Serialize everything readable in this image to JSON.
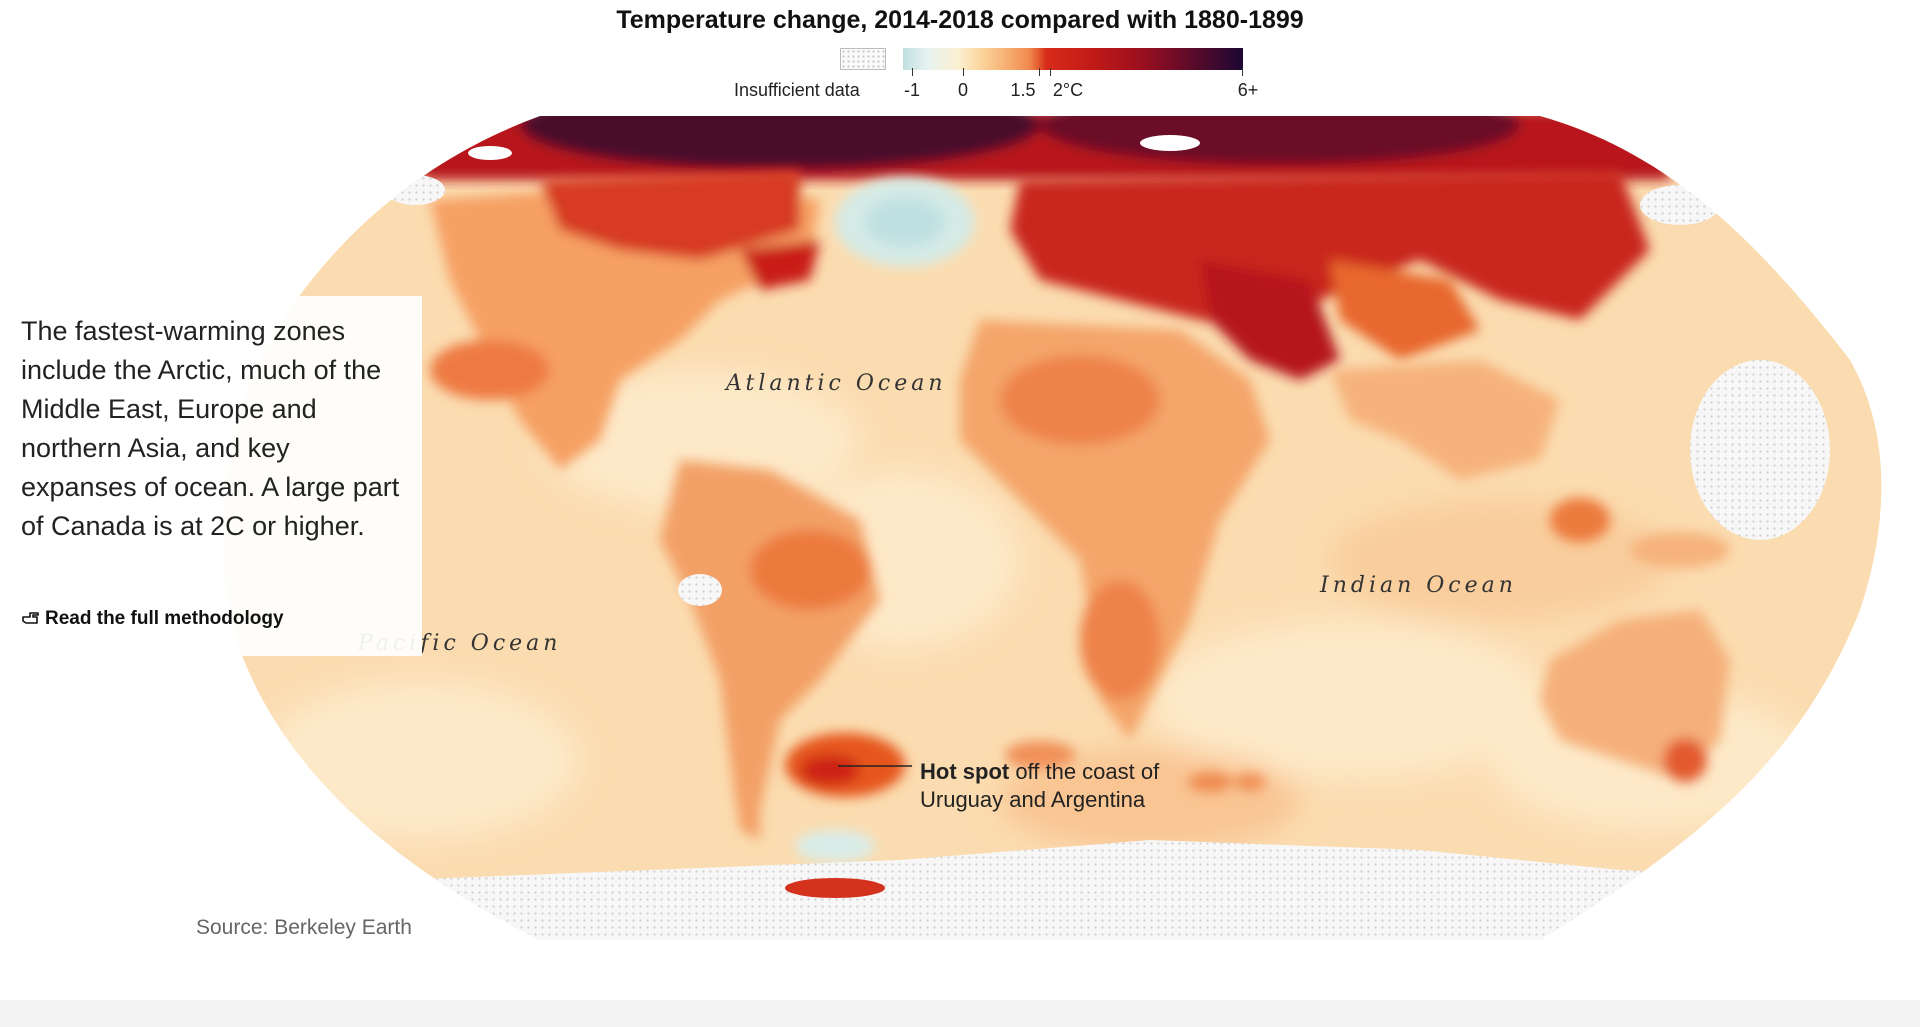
{
  "title": "Temperature change, 2014-2018 compared with 1880-1899",
  "legend": {
    "insufficient_label": "Insufficient data",
    "ticks": [
      "-1",
      "0",
      "1.5",
      "2°C",
      "6+"
    ],
    "colors": [
      "#bfe0e2",
      "#fbf0d4",
      "#f8b77a",
      "#e35a2d",
      "#c21b17",
      "#5c0a2a",
      "#1c0833"
    ]
  },
  "oceans": {
    "atlantic": "Atlantic Ocean",
    "pacific": "Pacific Ocean",
    "indian": "Indian Ocean"
  },
  "annotation": {
    "text": "The fastest-warming zones include the Arctic, much of the Middle East, Europe and northern Asia, and key expanses of ocean. A large part of Canada is at 2C or higher.",
    "link": "Read the full methodology",
    "link_icon": "pointing-hand-icon"
  },
  "hotspot": {
    "bold": "Hot spot",
    "rest_line1": " off the coast of",
    "line2": "Uruguay and Argentina"
  },
  "source": "Source: Berkeley Earth"
}
